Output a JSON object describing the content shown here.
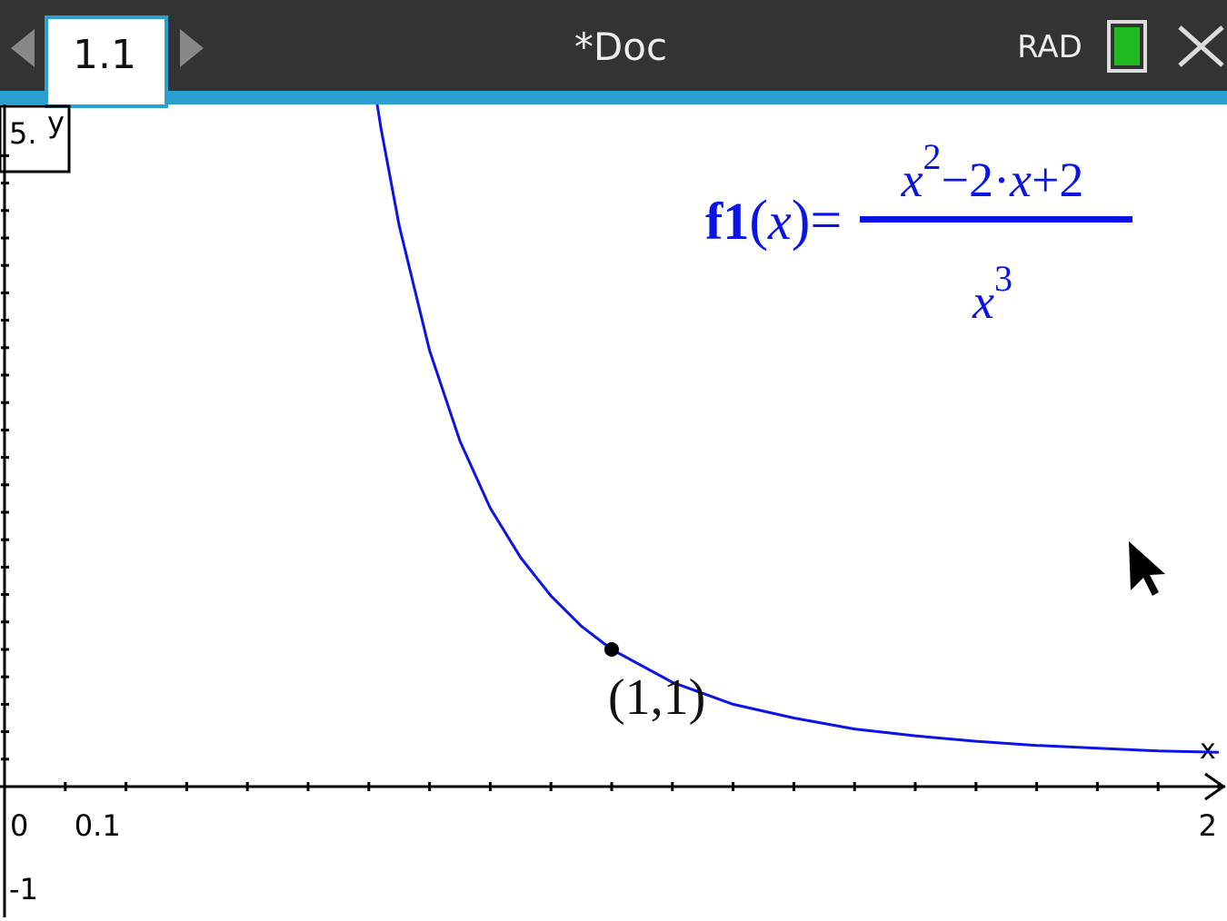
{
  "header": {
    "tab": "1.1",
    "title": "*Doc",
    "mode": "RAD"
  },
  "graph": {
    "xlim": [
      0,
      2
    ],
    "ylim": [
      -1,
      5
    ],
    "xticks": [
      0,
      0.1,
      2
    ],
    "x_minor_ticks": [
      0.2,
      0.3,
      0.4,
      0.5,
      0.6,
      0.7,
      0.8,
      0.9,
      1,
      1.1,
      1.2,
      1.3,
      1.4,
      1.5,
      1.6,
      1.7,
      1.8,
      1.9
    ],
    "yticks": [
      {
        "value": 5,
        "label": "5."
      },
      -1
    ],
    "y_minor_ticks": [
      0.2,
      0.4,
      0.6,
      0.8,
      1,
      1.2,
      1.4,
      1.6,
      1.8,
      2,
      2.2,
      2.4,
      2.6,
      2.8,
      3,
      3.2,
      3.4,
      3.6,
      3.8,
      4,
      4.2,
      4.4,
      4.6
    ],
    "x_axis_label": "x",
    "y_axis_label": "y",
    "function": {
      "name": "f1",
      "var": "x",
      "numerator": [
        "x",
        "2",
        "−2·",
        "x",
        "+2"
      ],
      "denominator": [
        "x",
        "3"
      ],
      "color": "#0a14e6",
      "x": [
        0.61,
        0.62,
        0.65,
        0.7,
        0.75,
        0.8,
        0.85,
        0.9,
        0.95,
        1,
        1.1,
        1.2,
        1.3,
        1.4,
        1.5,
        1.6,
        1.7,
        1.8,
        1.9,
        2
      ],
      "y": [
        5.08,
        4.8,
        4.09,
        3.18,
        2.52,
        2.03,
        1.67,
        1.39,
        1.17,
        1,
        0.76,
        0.6,
        0.5,
        0.42,
        0.37,
        0.33,
        0.3,
        0.28,
        0.26,
        0.25
      ]
    },
    "point": {
      "x": 1,
      "y": 1,
      "open": "(",
      "xlabel": "1",
      "sep": ",",
      "ylabel": "1",
      "close": ")"
    }
  }
}
